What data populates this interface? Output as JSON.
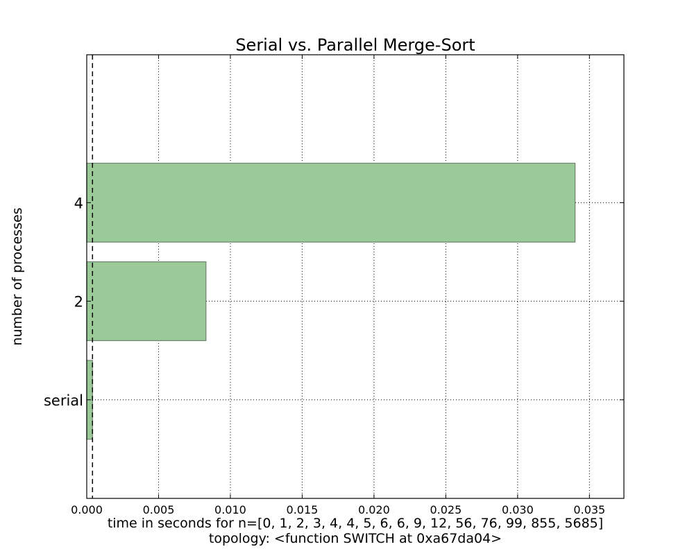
{
  "chart_data": {
    "type": "bar",
    "orientation": "horizontal",
    "title": "Serial vs. Parallel Merge-Sort",
    "xlabel": "time in seconds for n=[0, 1, 2, 3, 4, 4, 5, 6, 6, 9, 12, 56, 76, 99, 855, 5685]",
    "xlabel_line2": "topology: <function SWITCH at 0xa67da04>",
    "ylabel": "number of processes",
    "categories": [
      "serial",
      "2",
      "4"
    ],
    "values": [
      0.0004,
      0.0083,
      0.034
    ],
    "xlim": [
      0.0,
      0.0374
    ],
    "ylim": [
      -1.0,
      3.5
    ],
    "x_ticks": [
      0.0,
      0.005,
      0.01,
      0.015,
      0.02,
      0.025,
      0.03,
      0.035
    ],
    "x_tick_labels": [
      "0.000",
      "0.005",
      "0.010",
      "0.015",
      "0.020",
      "0.025",
      "0.030",
      "0.035"
    ],
    "reference_line": {
      "x": 0.0004,
      "style": "dashed"
    },
    "grid": true,
    "bar_color": "#9aca98",
    "bar_edge_color": "#6f826f"
  }
}
